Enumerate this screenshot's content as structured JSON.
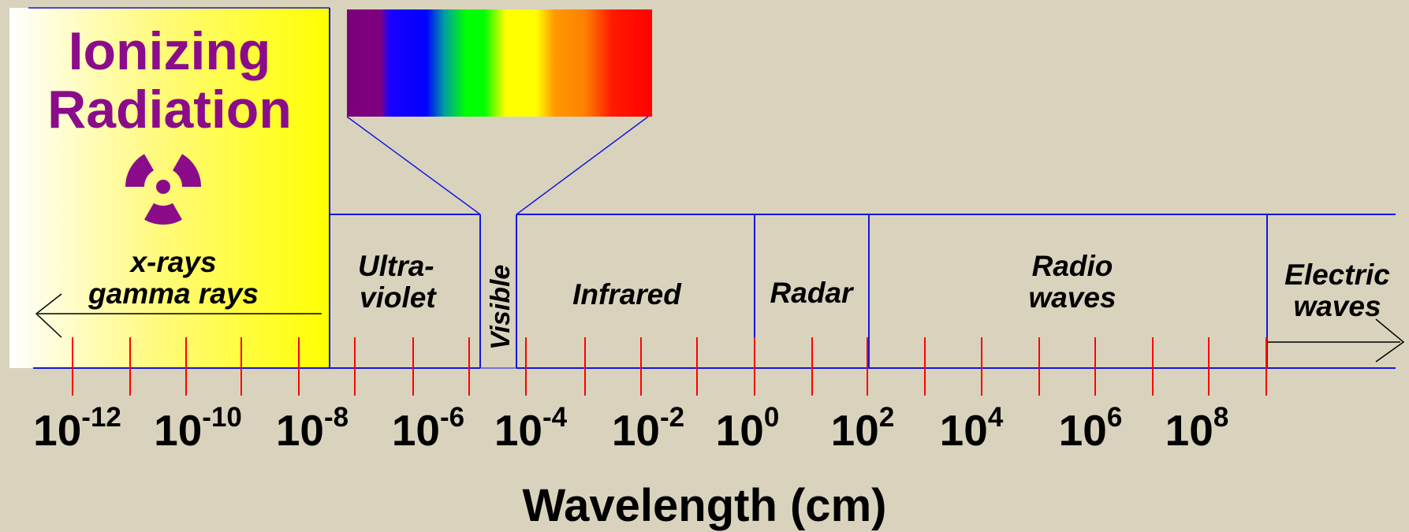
{
  "ionizing": {
    "title_line1": "Ionizing",
    "title_line2": "Radiation",
    "symbol": "radiation-trefoil-icon",
    "label_line1": "x-rays",
    "label_line2": "gamma rays"
  },
  "bands": {
    "ultraviolet_line1": "Ultra-",
    "ultraviolet_line2": "violet",
    "visible": "Visible",
    "infrared": "Infrared",
    "radar": "Radar",
    "radio_line1": "Radio",
    "radio_line2": "waves",
    "electric_line1": "Electric",
    "electric_line2": "waves"
  },
  "scale": {
    "ticks": [
      {
        "base": "10",
        "exp": "-12"
      },
      {
        "base": "10",
        "exp": "-10"
      },
      {
        "base": "10",
        "exp": "-8"
      },
      {
        "base": "10",
        "exp": "-6"
      },
      {
        "base": "10",
        "exp": "-4"
      },
      {
        "base": "10",
        "exp": "-2"
      },
      {
        "base": "10",
        "exp": "0"
      },
      {
        "base": "10",
        "exp": "2"
      },
      {
        "base": "10",
        "exp": "4"
      },
      {
        "base": "10",
        "exp": "6"
      },
      {
        "base": "10",
        "exp": "8"
      }
    ],
    "axis_title": "Wavelength (cm)"
  },
  "colors": {
    "background": "#d9d3bd",
    "title": "#8b0c8b",
    "band_lines": "#1515e0",
    "tick_marks": "#ff0000",
    "ionizing_gradient_start": "#ffffff",
    "ionizing_gradient_end": "#ffff00"
  },
  "spectrum_colors": [
    "#7a007a",
    "#0000ff",
    "#00ff00",
    "#ffff00",
    "#ff8000",
    "#ff0000"
  ]
}
